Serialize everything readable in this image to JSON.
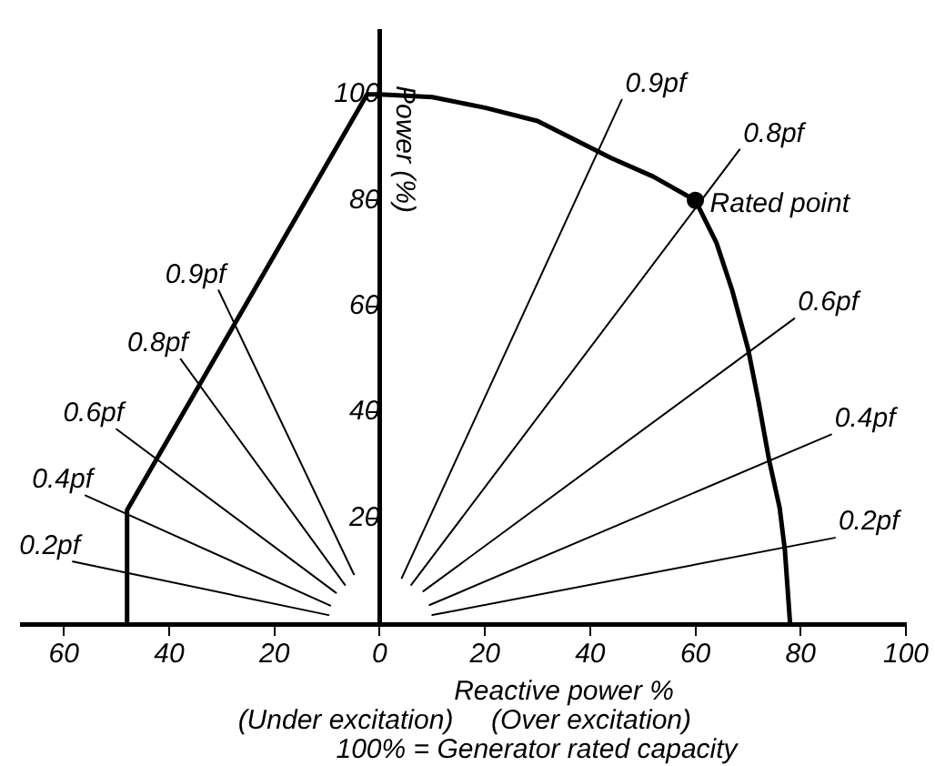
{
  "chart_data": {
    "type": "line",
    "xlabel": "Reactive power %",
    "ylabel": "Power (%)",
    "xlim": [
      -68,
      100
    ],
    "ylim": [
      0,
      112
    ],
    "xticks": [
      {
        "value": -60,
        "label": "60"
      },
      {
        "value": -40,
        "label": "40"
      },
      {
        "value": -20,
        "label": "20"
      },
      0,
      20,
      40,
      60,
      80,
      100
    ],
    "yticks": [
      20,
      40,
      60,
      80,
      100
    ],
    "grid": false,
    "legend": false,
    "marker": "none",
    "line_style": "solid",
    "series": [
      {
        "color": "#000000",
        "x": [
          -48,
          -48,
          -2.4,
          0,
          10,
          20,
          30,
          44,
          52,
          60,
          64,
          67,
          70,
          72,
          74,
          76,
          77,
          78
        ],
        "values": [
          0,
          21.5,
          100,
          100,
          99.5,
          97.5,
          95,
          88,
          84.5,
          80,
          72,
          63,
          52,
          42,
          31,
          22,
          14,
          0
        ]
      },
      {
        "name": "0.9pf",
        "color": "#000000",
        "x": [
          4.2,
          46
        ],
        "values": [
          8.7,
          99
        ]
      },
      {
        "name": "0.8pf",
        "color": "#000000",
        "x": [
          6,
          68.4
        ],
        "values": [
          7.4,
          89.6
        ]
      },
      {
        "name": "0.6pf",
        "color": "#000000",
        "x": [
          8.3,
          78.8
        ],
        "values": [
          6.2,
          57.7
        ]
      },
      {
        "name": "0.4pf",
        "color": "#000000",
        "x": [
          9.5,
          85.8
        ],
        "values": [
          3.6,
          35.8
        ]
      },
      {
        "name": "0.2pf",
        "color": "#000000",
        "x": [
          10,
          86.5
        ],
        "values": [
          1.7,
          16.3
        ]
      },
      {
        "name": "0.9pf",
        "color": "#000000",
        "x": [
          -4.9,
          -30.6
        ],
        "values": [
          9.4,
          63
        ]
      },
      {
        "name": "0.8pf",
        "color": "#000000",
        "x": [
          -6.6,
          -37.8
        ],
        "values": [
          7.4,
          50
        ]
      },
      {
        "name": "0.6pf",
        "color": "#000000",
        "x": [
          -8.3,
          -50
        ],
        "values": [
          5.9,
          36.8
        ]
      },
      {
        "name": "0.4pf",
        "color": "#000000",
        "x": [
          -9.4,
          -55.9
        ],
        "values": [
          3.5,
          24.3
        ]
      },
      {
        "name": "0.2pf",
        "color": "#000000",
        "x": [
          -9.7,
          -58.3
        ],
        "values": [
          1.7,
          11.8
        ]
      },
      {
        "type": "scatter",
        "marker": "circle",
        "color": "#000000",
        "x": [
          60
        ],
        "values": [
          80
        ]
      }
    ],
    "annotations": [
      {
        "text": "Rated point",
        "x": 60,
        "y": 80
      },
      "(Under excitation)",
      "(Over excitation)",
      "100% = Generator rated capacity"
    ]
  }
}
